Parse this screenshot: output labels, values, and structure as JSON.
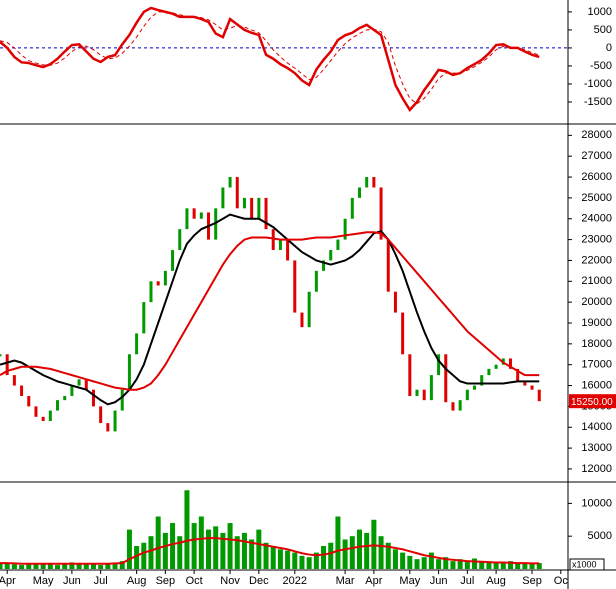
{
  "chart_data": [
    {
      "type": "line",
      "xlim": [
        0,
        79
      ],
      "ylim": [
        -2000,
        1330
      ],
      "yticks": [
        1000,
        500,
        0,
        -500,
        -1000,
        -1500
      ],
      "zero_line": true,
      "zero_color": "#0000cc",
      "x": [
        0,
        1,
        2,
        3,
        4,
        5,
        6,
        7,
        8,
        9,
        10,
        11,
        12,
        13,
        14,
        15,
        16,
        17,
        18,
        19,
        20,
        21,
        22,
        23,
        24,
        25,
        26,
        27,
        28,
        29,
        30,
        31,
        32,
        33,
        34,
        35,
        36,
        37,
        38,
        39,
        40,
        41,
        42,
        43,
        44,
        45,
        46,
        47,
        48,
        49,
        50,
        51,
        52,
        53,
        54,
        55,
        56,
        57,
        58,
        59,
        60,
        61,
        62,
        63,
        64,
        65,
        66,
        67,
        68,
        69,
        70,
        71,
        72,
        73,
        74,
        75
      ],
      "series": [
        {
          "color": "#e00000",
          "style": "line",
          "width": 2.5,
          "values": [
            170,
            0,
            -250,
            -400,
            -420,
            -480,
            -530,
            -450,
            -300,
            -100,
            80,
            100,
            -100,
            -300,
            -390,
            -250,
            -200,
            100,
            360,
            700,
            1000,
            1110,
            1050,
            1000,
            950,
            860,
            860,
            860,
            800,
            720,
            400,
            300,
            800,
            650,
            500,
            420,
            360,
            -190,
            -300,
            -450,
            -560,
            -700,
            -900,
            -1030,
            -600,
            -330,
            -100,
            220,
            350,
            420,
            550,
            640,
            500,
            360,
            -330,
            -1030,
            -1400,
            -1720,
            -1500,
            -1170,
            -900,
            -610,
            -650,
            -750,
            -700,
            -560,
            -450,
            -330,
            -150,
            80,
            100,
            0,
            0,
            -100,
            -190,
            -250
          ]
        },
        {
          "color": "#e00000",
          "style": "dashed",
          "width": 1,
          "values": [
            200,
            150,
            0,
            -200,
            -350,
            -420,
            -470,
            -480,
            -420,
            -280,
            -100,
            30,
            50,
            -50,
            -200,
            -300,
            -280,
            -150,
            50,
            300,
            600,
            850,
            1000,
            1000,
            970,
            920,
            880,
            860,
            840,
            780,
            650,
            500,
            550,
            620,
            580,
            500,
            420,
            200,
            -50,
            -250,
            -420,
            -560,
            -720,
            -880,
            -820,
            -600,
            -350,
            -100,
            120,
            280,
            400,
            500,
            520,
            450,
            150,
            -500,
            -1000,
            -1400,
            -1550,
            -1400,
            -1150,
            -850,
            -700,
            -700,
            -700,
            -620,
            -520,
            -400,
            -250,
            -50,
            50,
            30,
            0,
            -50,
            -130,
            -200
          ]
        }
      ]
    },
    {
      "type": "line",
      "xlim": [
        0,
        79
      ],
      "ylim": [
        11470,
        28400
      ],
      "yticks": [
        28000,
        27000,
        26000,
        25000,
        24000,
        23000,
        22000,
        21000,
        20000,
        19000,
        18000,
        17000,
        16000,
        15000,
        14000,
        13000,
        12000
      ],
      "last_label": {
        "value": 15250,
        "label": "15250.00"
      },
      "last_color": "#e00000",
      "x": [
        0,
        1,
        2,
        3,
        4,
        5,
        6,
        7,
        8,
        9,
        10,
        11,
        12,
        13,
        14,
        15,
        16,
        17,
        18,
        19,
        20,
        21,
        22,
        23,
        24,
        25,
        26,
        27,
        28,
        29,
        30,
        31,
        32,
        33,
        34,
        35,
        36,
        37,
        38,
        39,
        40,
        41,
        42,
        43,
        44,
        45,
        46,
        47,
        48,
        49,
        50,
        51,
        52,
        53,
        54,
        55,
        56,
        57,
        58,
        59,
        60,
        61,
        62,
        63,
        64,
        65,
        66,
        67,
        68,
        69,
        70,
        71,
        72,
        73,
        74,
        75
      ],
      "series": [
        {
          "style": "candle",
          "up_color": "#009900",
          "down_color": "#e00000",
          "values": [
            17500,
            16500,
            16000,
            15500,
            15000,
            14500,
            14300,
            14800,
            15300,
            15500,
            16000,
            16300,
            15800,
            15000,
            14200,
            13800,
            14800,
            15800,
            17500,
            18500,
            20000,
            21000,
            20800,
            21500,
            22500,
            23500,
            24500,
            24000,
            24300,
            23000,
            24500,
            25500,
            26000,
            24500,
            25000,
            24000,
            25000,
            23500,
            22500,
            23000,
            22000,
            19500,
            18800,
            20500,
            21500,
            22000,
            22500,
            23000,
            24000,
            25000,
            25500,
            26000,
            25500,
            23000,
            20500,
            19500,
            17500,
            15500,
            15800,
            15300,
            16500,
            17500,
            15200,
            14800,
            15300,
            15800,
            16000,
            16500,
            16800,
            17000,
            17300,
            16800,
            16200,
            16000,
            15800,
            15250
          ]
        },
        {
          "style": "line",
          "color": "#000000",
          "width": 2,
          "values": [
            17000,
            17100,
            17200,
            17100,
            16900,
            16700,
            16500,
            16350,
            16200,
            16100,
            16000,
            15900,
            15800,
            15550,
            15300,
            15100,
            15200,
            15450,
            15800,
            16300,
            17000,
            18000,
            19000,
            20000,
            21000,
            22000,
            22800,
            23200,
            23500,
            23650,
            23800,
            24000,
            24200,
            24100,
            24000,
            24000,
            24000,
            23800,
            23600,
            23300,
            23000,
            22700,
            22400,
            22200,
            22000,
            21900,
            21800,
            21900,
            22000,
            22200,
            22500,
            22900,
            23300,
            23400,
            23000,
            22300,
            21500,
            20500,
            19500,
            18600,
            17800,
            17200,
            16800,
            16500,
            16200,
            16100,
            16100,
            16100,
            16100,
            16100,
            16100,
            16150,
            16200,
            16200,
            16200,
            16200
          ]
        },
        {
          "style": "line",
          "color": "#e00000",
          "width": 2,
          "values": [
            16500,
            16700,
            16800,
            16900,
            16900,
            16900,
            16850,
            16800,
            16700,
            16600,
            16500,
            16400,
            16300,
            16200,
            16100,
            16000,
            15900,
            15850,
            15800,
            15800,
            15900,
            16100,
            16500,
            17000,
            17600,
            18200,
            18800,
            19400,
            20000,
            20600,
            21200,
            21800,
            22300,
            22700,
            23000,
            23100,
            23100,
            23100,
            23050,
            23000,
            23000,
            23000,
            23000,
            23050,
            23100,
            23100,
            23100,
            23150,
            23200,
            23250,
            23300,
            23350,
            23350,
            23300,
            23000,
            22600,
            22200,
            21800,
            21400,
            21000,
            20600,
            20200,
            19800,
            19400,
            19000,
            18600,
            18300,
            18000,
            17700,
            17400,
            17100,
            16900,
            16700,
            16500,
            16500,
            16500
          ]
        }
      ]
    },
    {
      "type": "bar",
      "xlim": [
        0,
        79
      ],
      "ylim": [
        0,
        12800
      ],
      "yticks": [
        10000,
        5000
      ],
      "unit_label": "x1000",
      "xticks": [
        {
          "value": 1,
          "label": "Apr"
        },
        {
          "value": 6,
          "label": "May"
        },
        {
          "value": 10,
          "label": "Jun"
        },
        {
          "value": 14,
          "label": "Jul"
        },
        {
          "value": 19,
          "label": "Aug"
        },
        {
          "value": 23,
          "label": "Sep"
        },
        {
          "value": 27,
          "label": "Oct"
        },
        {
          "value": 32,
          "label": "Nov"
        },
        {
          "value": 36,
          "label": "Dec"
        },
        {
          "value": 41,
          "label": "2022"
        },
        {
          "value": 48,
          "label": "Mar"
        },
        {
          "value": 52,
          "label": "Apr"
        },
        {
          "value": 57,
          "label": "May"
        },
        {
          "value": 61,
          "label": "Jun"
        },
        {
          "value": 65,
          "label": "Jul"
        },
        {
          "value": 69,
          "label": "Aug"
        },
        {
          "value": 74,
          "label": "Sep"
        },
        {
          "value": 78,
          "label": "Oc"
        }
      ],
      "x": [
        0,
        1,
        2,
        3,
        4,
        5,
        6,
        7,
        8,
        9,
        10,
        11,
        12,
        13,
        14,
        15,
        16,
        17,
        18,
        19,
        20,
        21,
        22,
        23,
        24,
        25,
        26,
        27,
        28,
        29,
        30,
        31,
        32,
        33,
        34,
        35,
        36,
        37,
        38,
        39,
        40,
        41,
        42,
        43,
        44,
        45,
        46,
        47,
        48,
        49,
        50,
        51,
        52,
        53,
        54,
        55,
        56,
        57,
        58,
        59,
        60,
        61,
        62,
        63,
        64,
        65,
        66,
        67,
        68,
        69,
        70,
        71,
        72,
        73,
        74,
        75
      ],
      "series": [
        {
          "style": "bar",
          "color": "#009900",
          "values": [
            800,
            900,
            700,
            600,
            700,
            800,
            900,
            700,
            600,
            800,
            1000,
            900,
            800,
            700,
            600,
            800,
            900,
            1200,
            6000,
            3500,
            4000,
            5000,
            8000,
            5500,
            7000,
            5000,
            12000,
            7000,
            8000,
            6000,
            6500,
            5500,
            7000,
            5000,
            5500,
            4500,
            6000,
            4000,
            3500,
            3000,
            2800,
            2500,
            2000,
            1800,
            2500,
            3500,
            4000,
            8000,
            4500,
            5000,
            6000,
            5500,
            7500,
            5000,
            4000,
            3000,
            2500,
            2000,
            1500,
            1800,
            2500,
            1500,
            1800,
            1200,
            1500,
            1300,
            1600,
            1200,
            1000,
            1100,
            1000,
            1200,
            900,
            1000,
            800,
            900
          ]
        },
        {
          "style": "line",
          "color": "#e00000",
          "width": 2,
          "values": [
            900,
            900,
            850,
            800,
            800,
            800,
            800,
            800,
            800,
            800,
            800,
            800,
            800,
            800,
            800,
            800,
            850,
            900,
            1500,
            2000,
            2500,
            2800,
            3200,
            3500,
            3800,
            4000,
            4300,
            4500,
            4600,
            4700,
            4700,
            4600,
            4500,
            4400,
            4200,
            4000,
            3800,
            3600,
            3400,
            3200,
            3000,
            2700,
            2400,
            2200,
            2100,
            2200,
            2400,
            2800,
            3000,
            3200,
            3400,
            3500,
            3600,
            3500,
            3400,
            3200,
            3000,
            2700,
            2400,
            2100,
            1900,
            1700,
            1500,
            1400,
            1300,
            1200,
            1150,
            1100,
            1050,
            1000,
            1000,
            950,
            900,
            900,
            850,
            850
          ]
        }
      ]
    }
  ]
}
